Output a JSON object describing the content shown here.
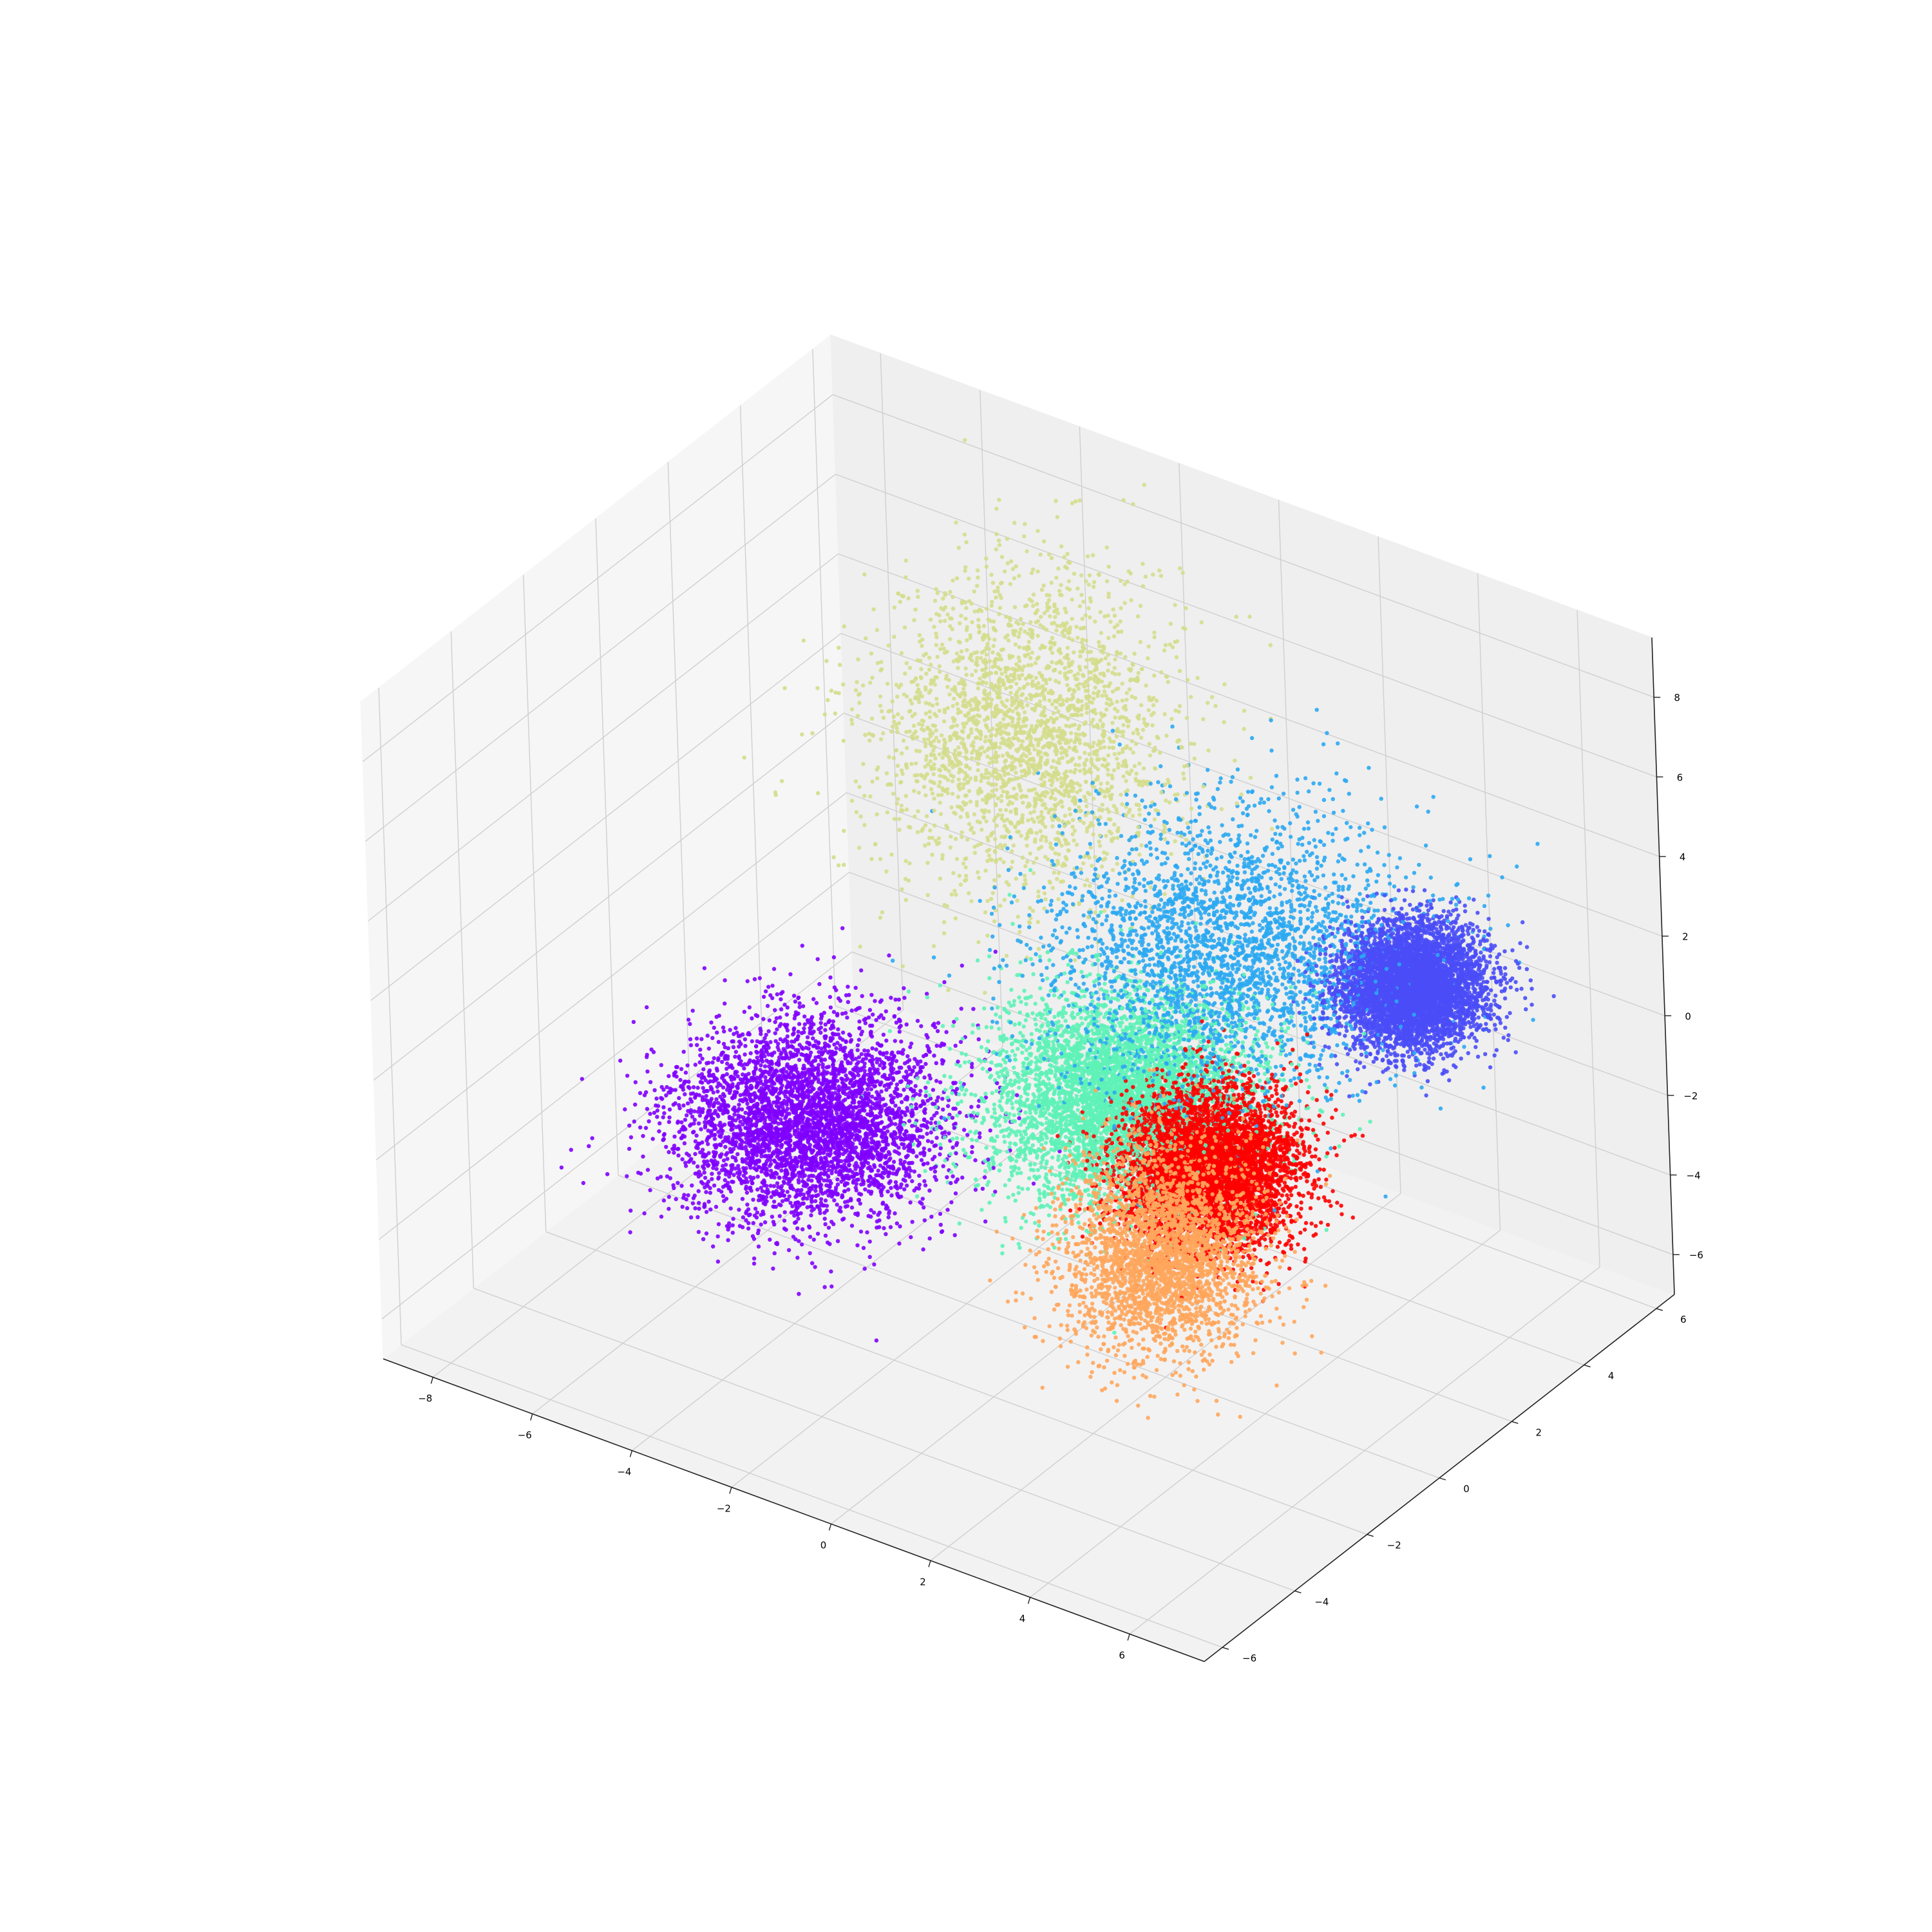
{
  "chart_data": {
    "type": "scatter",
    "projection": "3d",
    "title": "",
    "xlabel": "",
    "ylabel": "",
    "zlabel": "",
    "grid": true,
    "legend": "none",
    "xlim": [
      -9,
      7.5
    ],
    "ylim": [
      -6.5,
      6.5
    ],
    "zlim": [
      -7,
      9.5
    ],
    "xticks": [
      -8,
      -6,
      -4,
      -2,
      0,
      2,
      4,
      6
    ],
    "yticks": [
      -6,
      -4,
      -2,
      0,
      2,
      4,
      6
    ],
    "zticks": [
      -6,
      -4,
      -2,
      0,
      2,
      4,
      6,
      8
    ],
    "xtick_labels": [
      "−8",
      "−6",
      "−4",
      "−2",
      "0",
      "2",
      "4",
      "6"
    ],
    "ytick_labels": [
      "−6",
      "−4",
      "−2",
      "0",
      "2",
      "4",
      "6"
    ],
    "ztick_labels": [
      "−6",
      "−4",
      "−2",
      "0",
      "2",
      "4",
      "6",
      "8"
    ],
    "pane_color": "#f2f2f2",
    "series": [
      {
        "color": "#8000ff",
        "center": [
          -4.6,
          -0.6,
          -3.2
        ],
        "spread": [
          1.1,
          1.1,
          0.9
        ],
        "count": 4200
      },
      {
        "color": "#d4dd8c",
        "center": [
          -3.6,
          4.2,
          3.6
        ],
        "spread": [
          1.2,
          1.2,
          1.7
        ],
        "count": 2600
      },
      {
        "color": "#2ba9f2",
        "center": [
          0.8,
          3.6,
          0.6
        ],
        "spread": [
          1.5,
          1.5,
          1.3
        ],
        "count": 3000
      },
      {
        "color": "#4a4cf7",
        "center": [
          3.8,
          4.6,
          0.4
        ],
        "spread": [
          0.6,
          0.6,
          0.6
        ],
        "count": 5200
      },
      {
        "color": "#5ef2b7",
        "center": [
          0.1,
          1.6,
          -2.0
        ],
        "spread": [
          1.1,
          1.1,
          1.0
        ],
        "count": 5000
      },
      {
        "color": "#ff0000",
        "center": [
          2.4,
          0.9,
          -2.2
        ],
        "spread": [
          0.7,
          0.7,
          0.8
        ],
        "count": 5200
      },
      {
        "color": "#ffa65c",
        "center": [
          3.0,
          -1.2,
          -2.6
        ],
        "spread": [
          0.8,
          0.8,
          1.1
        ],
        "count": 3000
      }
    ]
  }
}
